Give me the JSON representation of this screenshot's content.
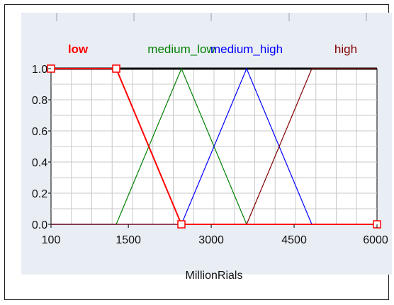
{
  "chart_data": {
    "type": "line",
    "xlabel": "MillionRials",
    "xlim": [
      100,
      6000
    ],
    "ylim": [
      0,
      1
    ],
    "x_ticks": [
      "100",
      "1500",
      "3000",
      "4500",
      "6000"
    ],
    "x_tick_values": [
      100,
      1500,
      3000,
      4500,
      6000
    ],
    "y_ticks": [
      "0.0",
      "0.2",
      "0.4",
      "0.6",
      "0.8",
      "1.0"
    ],
    "y_tick_values": [
      0,
      0.2,
      0.4,
      0.6,
      0.8,
      1.0
    ],
    "grid": true,
    "series": [
      {
        "name": "low",
        "color": "#ff0000",
        "x": [
          100,
          1280,
          2460,
          6000
        ],
        "y": [
          1,
          1,
          0,
          0
        ],
        "selected": true
      },
      {
        "name": "medium_low",
        "color": "#008000",
        "x": [
          100,
          1280,
          2460,
          3640,
          6000
        ],
        "y": [
          0,
          0,
          1,
          0,
          0
        ]
      },
      {
        "name": "medium_high",
        "color": "#0000ff",
        "x": [
          100,
          2460,
          3640,
          4820,
          6000
        ],
        "y": [
          0,
          0,
          1,
          0,
          0
        ]
      },
      {
        "name": "high",
        "color": "#800000",
        "x": [
          100,
          3640,
          4820,
          6000
        ],
        "y": [
          0,
          0,
          1,
          1
        ]
      }
    ],
    "handle_points": [
      [
        100,
        1
      ],
      [
        1280,
        1
      ],
      [
        2460,
        0
      ],
      [
        6000,
        0
      ]
    ]
  }
}
